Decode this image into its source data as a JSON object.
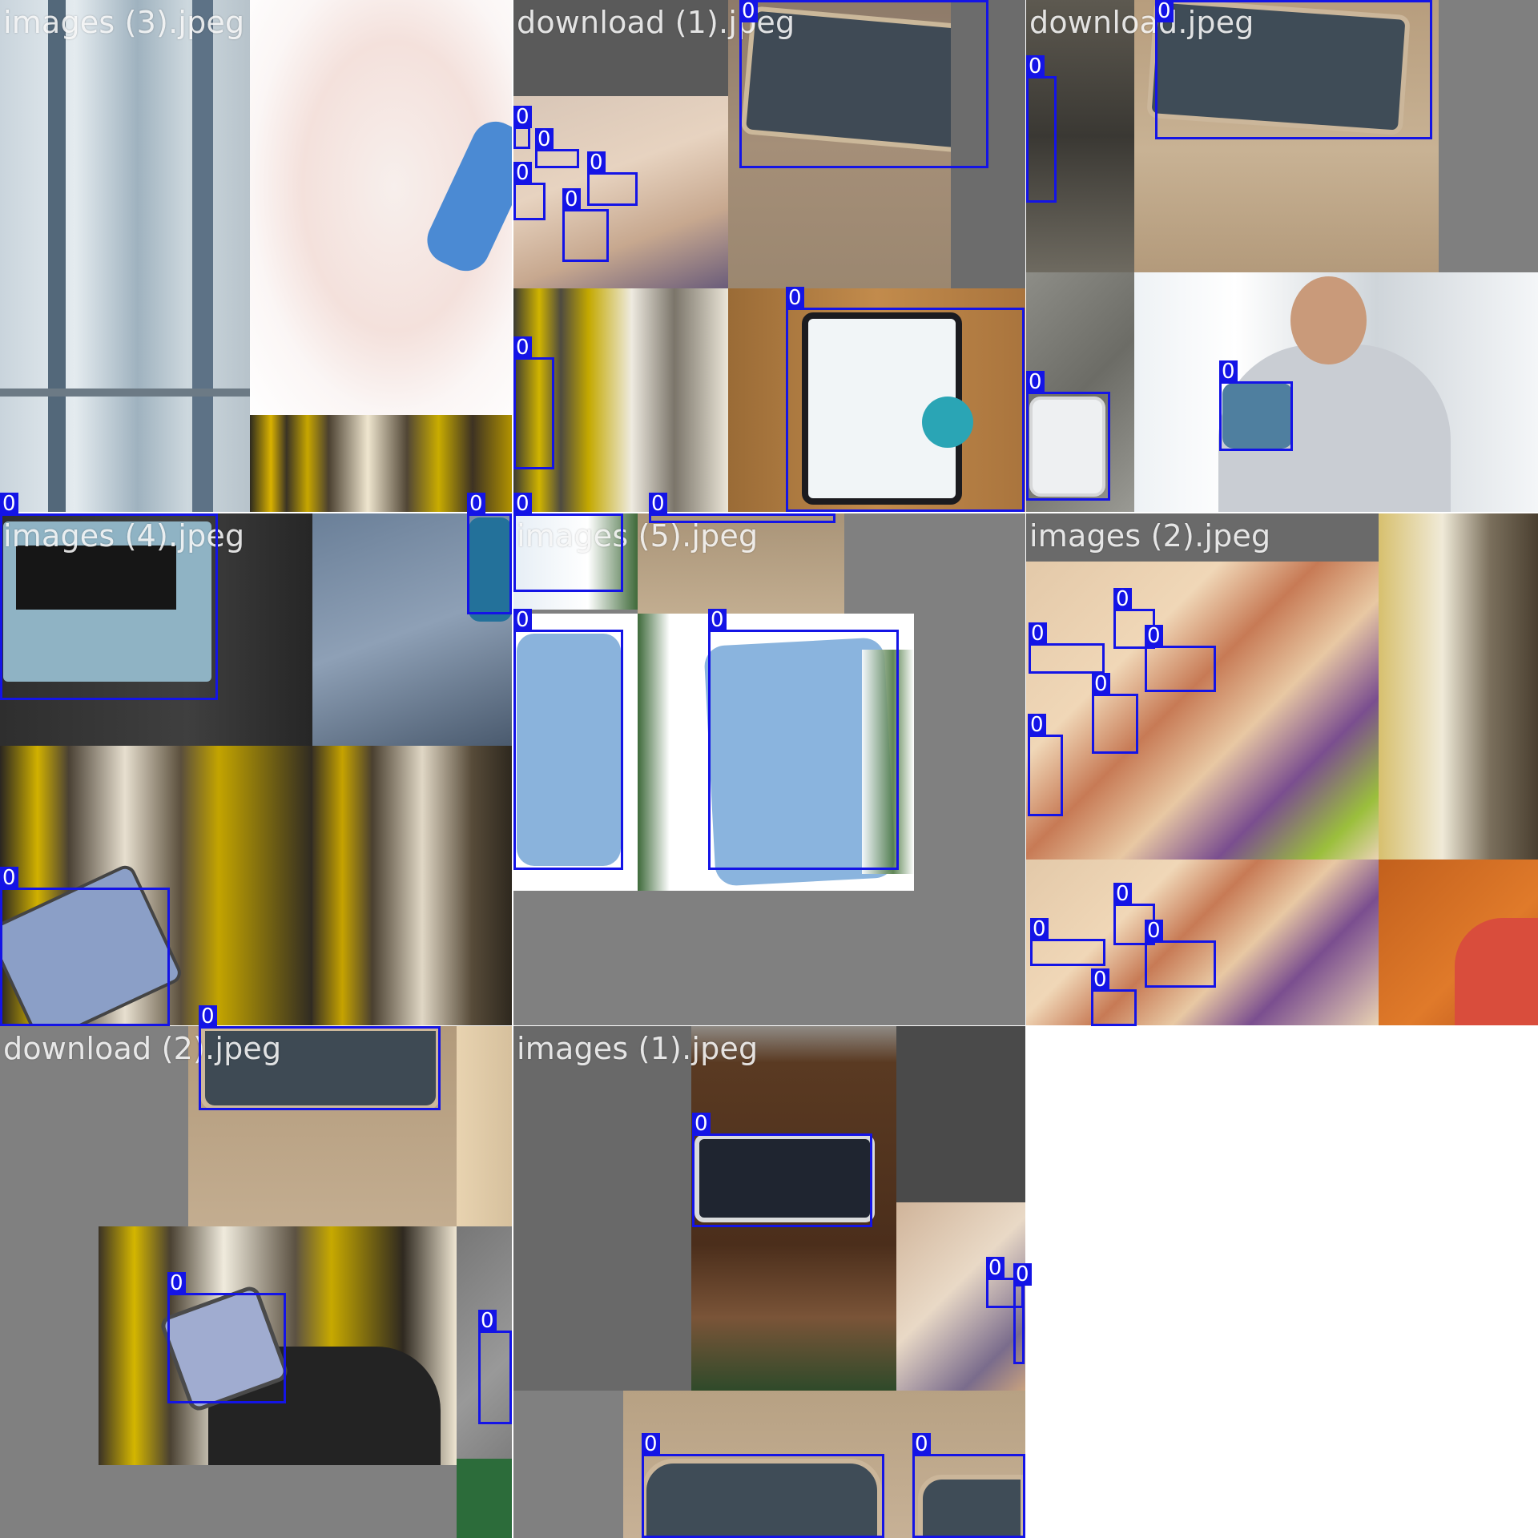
{
  "tiles": [
    {
      "filename": "images (3).jpeg"
    },
    {
      "filename": "download (1).jpeg"
    },
    {
      "filename": "download.jpeg"
    },
    {
      "filename": "images (4).jpeg"
    },
    {
      "filename": "images (5).jpeg"
    },
    {
      "filename": "images (2).jpeg"
    },
    {
      "filename": "download (2).jpeg"
    },
    {
      "filename": "images (1).jpeg"
    }
  ],
  "box_label": "0",
  "colors": {
    "box": "#1414e6",
    "gray_fill": "#808080",
    "background": "#ffffff"
  }
}
